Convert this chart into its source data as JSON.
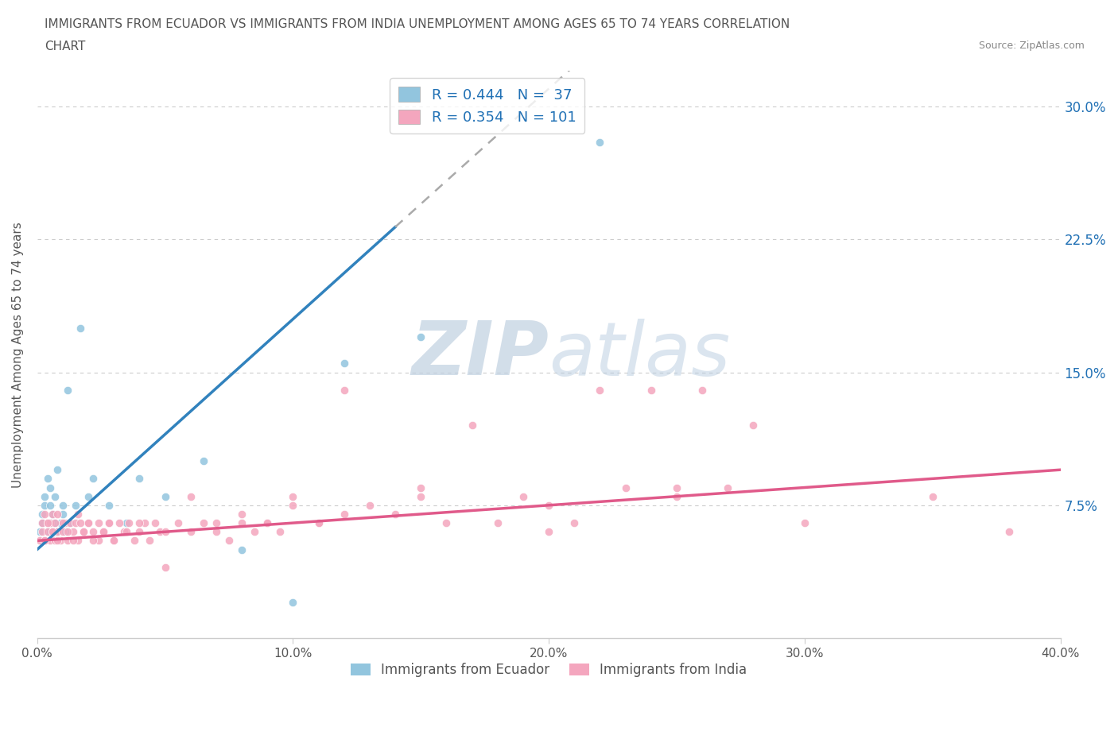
{
  "title_line1": "IMMIGRANTS FROM ECUADOR VS IMMIGRANTS FROM INDIA UNEMPLOYMENT AMONG AGES 65 TO 74 YEARS CORRELATION",
  "title_line2": "CHART",
  "source": "Source: ZipAtlas.com",
  "ylabel": "Unemployment Among Ages 65 to 74 years",
  "watermark_zip": "ZIP",
  "watermark_atlas": "atlas",
  "ecuador_R": 0.444,
  "ecuador_N": 37,
  "india_R": 0.354,
  "india_N": 101,
  "xlim": [
    0.0,
    0.4
  ],
  "ylim": [
    0.0,
    0.32
  ],
  "xticks": [
    0.0,
    0.1,
    0.2,
    0.3,
    0.4
  ],
  "yticks": [
    0.0,
    0.075,
    0.15,
    0.225,
    0.3
  ],
  "ytick_labels": [
    "",
    "7.5%",
    "15.0%",
    "22.5%",
    "30.0%"
  ],
  "xtick_labels": [
    "0.0%",
    "10.0%",
    "20.0%",
    "30.0%",
    "40.0%"
  ],
  "ecuador_color": "#92c5de",
  "india_color": "#f4a6be",
  "ecuador_line_color": "#3182bd",
  "india_line_color": "#e05a8a",
  "trend_dashed_color": "#aaaaaa",
  "ecuador_x": [
    0.001,
    0.002,
    0.002,
    0.003,
    0.003,
    0.003,
    0.004,
    0.004,
    0.005,
    0.005,
    0.005,
    0.006,
    0.006,
    0.007,
    0.007,
    0.008,
    0.008,
    0.009,
    0.01,
    0.01,
    0.011,
    0.012,
    0.013,
    0.015,
    0.017,
    0.02,
    0.022,
    0.028,
    0.035,
    0.04,
    0.05,
    0.065,
    0.08,
    0.1,
    0.12,
    0.15,
    0.22
  ],
  "ecuador_y": [
    0.06,
    0.065,
    0.07,
    0.055,
    0.075,
    0.08,
    0.06,
    0.09,
    0.065,
    0.075,
    0.085,
    0.06,
    0.07,
    0.08,
    0.065,
    0.095,
    0.06,
    0.065,
    0.07,
    0.075,
    0.06,
    0.14,
    0.065,
    0.075,
    0.175,
    0.08,
    0.09,
    0.075,
    0.065,
    0.09,
    0.08,
    0.1,
    0.05,
    0.02,
    0.155,
    0.17,
    0.28
  ],
  "india_x": [
    0.001,
    0.002,
    0.002,
    0.003,
    0.003,
    0.004,
    0.004,
    0.005,
    0.005,
    0.006,
    0.006,
    0.007,
    0.007,
    0.008,
    0.008,
    0.009,
    0.01,
    0.01,
    0.011,
    0.012,
    0.013,
    0.014,
    0.015,
    0.016,
    0.017,
    0.018,
    0.02,
    0.022,
    0.024,
    0.026,
    0.028,
    0.03,
    0.032,
    0.034,
    0.036,
    0.038,
    0.04,
    0.042,
    0.044,
    0.046,
    0.048,
    0.05,
    0.055,
    0.06,
    0.065,
    0.07,
    0.075,
    0.08,
    0.085,
    0.09,
    0.095,
    0.1,
    0.11,
    0.12,
    0.13,
    0.14,
    0.15,
    0.16,
    0.17,
    0.18,
    0.19,
    0.2,
    0.21,
    0.22,
    0.23,
    0.24,
    0.25,
    0.26,
    0.27,
    0.28,
    0.003,
    0.004,
    0.006,
    0.008,
    0.01,
    0.012,
    0.014,
    0.016,
    0.018,
    0.02,
    0.022,
    0.024,
    0.026,
    0.028,
    0.03,
    0.035,
    0.04,
    0.05,
    0.06,
    0.07,
    0.08,
    0.09,
    0.1,
    0.11,
    0.12,
    0.15,
    0.2,
    0.25,
    0.3,
    0.35,
    0.38
  ],
  "india_y": [
    0.055,
    0.06,
    0.065,
    0.055,
    0.07,
    0.06,
    0.065,
    0.055,
    0.065,
    0.06,
    0.07,
    0.055,
    0.065,
    0.06,
    0.07,
    0.055,
    0.065,
    0.06,
    0.065,
    0.055,
    0.065,
    0.06,
    0.065,
    0.055,
    0.065,
    0.06,
    0.065,
    0.06,
    0.055,
    0.06,
    0.065,
    0.055,
    0.065,
    0.06,
    0.065,
    0.055,
    0.06,
    0.065,
    0.055,
    0.065,
    0.06,
    0.06,
    0.065,
    0.06,
    0.065,
    0.06,
    0.055,
    0.065,
    0.06,
    0.065,
    0.06,
    0.075,
    0.065,
    0.14,
    0.075,
    0.07,
    0.085,
    0.065,
    0.12,
    0.065,
    0.08,
    0.075,
    0.065,
    0.14,
    0.085,
    0.14,
    0.085,
    0.14,
    0.085,
    0.12,
    0.055,
    0.065,
    0.06,
    0.055,
    0.065,
    0.06,
    0.055,
    0.07,
    0.06,
    0.065,
    0.055,
    0.065,
    0.06,
    0.065,
    0.055,
    0.06,
    0.065,
    0.04,
    0.08,
    0.065,
    0.07,
    0.065,
    0.08,
    0.065,
    0.07,
    0.08,
    0.06,
    0.08,
    0.065,
    0.08,
    0.06
  ],
  "ecuador_trend_x0": 0.0,
  "ecuador_trend_x_end": 0.14,
  "ecuador_trend_x_dash_end": 0.3,
  "ecuador_trend_y0": 0.05,
  "ecuador_trend_slope": 1.3,
  "india_trend_x0": 0.0,
  "india_trend_x_end": 0.4,
  "india_trend_y0": 0.055,
  "india_trend_slope": 0.1,
  "background_color": "#ffffff",
  "grid_color": "#cccccc",
  "title_color": "#555555",
  "legend_text_color": "#2171b5",
  "watermark_color": "#c8d8e8",
  "legend_label1": "Immigrants from Ecuador",
  "legend_label2": "Immigrants from India"
}
